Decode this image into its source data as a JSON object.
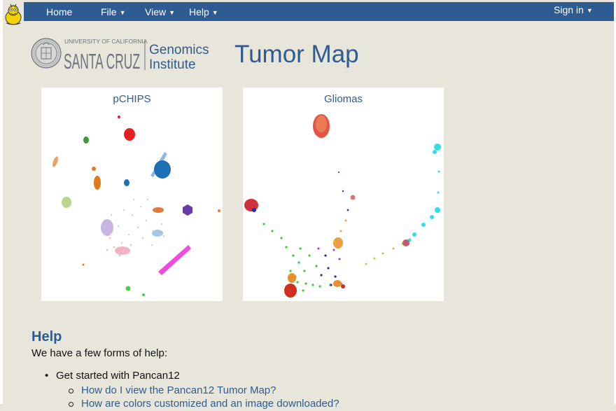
{
  "nav": {
    "home": "Home",
    "file": "File",
    "view": "View",
    "help": "Help",
    "signin": "Sign in",
    "caret_icon": "caret-down-icon"
  },
  "branding": {
    "university_line": "UNIVERSITY OF CALIFORNIA",
    "campus": "SANTA CRUZ",
    "institute_line1": "Genomics",
    "institute_line2": "Institute"
  },
  "page_title": "Tumor Map",
  "maps": [
    {
      "label": "pCHIPS"
    },
    {
      "label": "Gliomas"
    }
  ],
  "help": {
    "heading": "Help",
    "intro": "We have a few forms of help:",
    "item_label": "Get started with Pancan12",
    "links": [
      "How do I view the Pancan12 Tumor Map?",
      "How are colors customized and an image downloaded?"
    ]
  },
  "colors": {
    "navbar": "#2e5b91",
    "background": "#e8e6da",
    "accent_text": "#2e5b91"
  }
}
